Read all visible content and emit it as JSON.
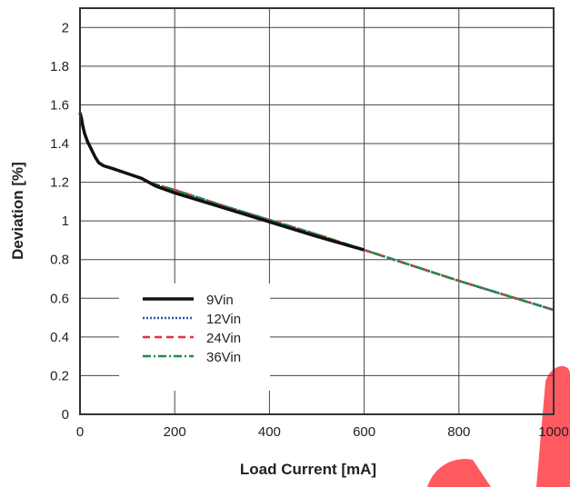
{
  "chart_data": {
    "type": "line",
    "title": "",
    "xlabel": "Load Current [mA]",
    "ylabel": "Deviation [%]",
    "xlim": [
      0,
      1000
    ],
    "ylim": [
      0,
      2.1
    ],
    "xticks": [
      0,
      200,
      400,
      600,
      800,
      1000
    ],
    "yticks": [
      0,
      0.2,
      0.4,
      0.6,
      0.8,
      1,
      1.2,
      1.4,
      1.6,
      1.8,
      2
    ],
    "xtick_labels": [
      "0",
      "200",
      "400",
      "600",
      "800",
      "1000"
    ],
    "ytick_labels": [
      "0",
      "0.2",
      "0.4",
      "0.6",
      "0.8",
      "1",
      "1.2",
      "1.4",
      "1.6",
      "1.8",
      "2"
    ],
    "grid": true,
    "legend_position": "bottom-left",
    "series": [
      {
        "name": "9Vin",
        "color": "#111111",
        "style": "solid",
        "x": [
          0,
          3,
          6,
          10,
          16,
          24,
          32,
          40,
          50,
          70,
          100,
          130,
          160,
          200,
          300,
          400,
          500,
          600
        ],
        "y": [
          1.56,
          1.53,
          1.49,
          1.45,
          1.41,
          1.37,
          1.33,
          1.3,
          1.285,
          1.27,
          1.245,
          1.22,
          1.18,
          1.145,
          1.07,
          0.995,
          0.92,
          0.85
        ]
      },
      {
        "name": "12Vin",
        "color": "#2f55a8",
        "style": "dotted",
        "x": [
          150,
          200,
          300,
          400,
          500,
          600,
          700,
          800,
          900,
          1000
        ],
        "y": [
          1.195,
          1.16,
          1.08,
          1.005,
          0.93,
          0.85,
          0.77,
          0.69,
          0.615,
          0.54
        ]
      },
      {
        "name": "24Vin",
        "color": "#e8303a",
        "style": "dashed",
        "x": [
          150,
          200,
          300,
          400,
          500,
          600,
          700,
          800,
          900,
          1000
        ],
        "y": [
          1.195,
          1.16,
          1.08,
          1.005,
          0.93,
          0.85,
          0.77,
          0.69,
          0.615,
          0.54
        ]
      },
      {
        "name": "36Vin",
        "color": "#1f8a4c",
        "style": "dashdot",
        "x": [
          150,
          200,
          300,
          400,
          500,
          600,
          700,
          800,
          900,
          1000
        ],
        "y": [
          1.195,
          1.16,
          1.08,
          1.005,
          0.93,
          0.85,
          0.77,
          0.69,
          0.615,
          0.54
        ]
      }
    ]
  },
  "decoration": {
    "watermark_color": "#ff5a5f"
  }
}
